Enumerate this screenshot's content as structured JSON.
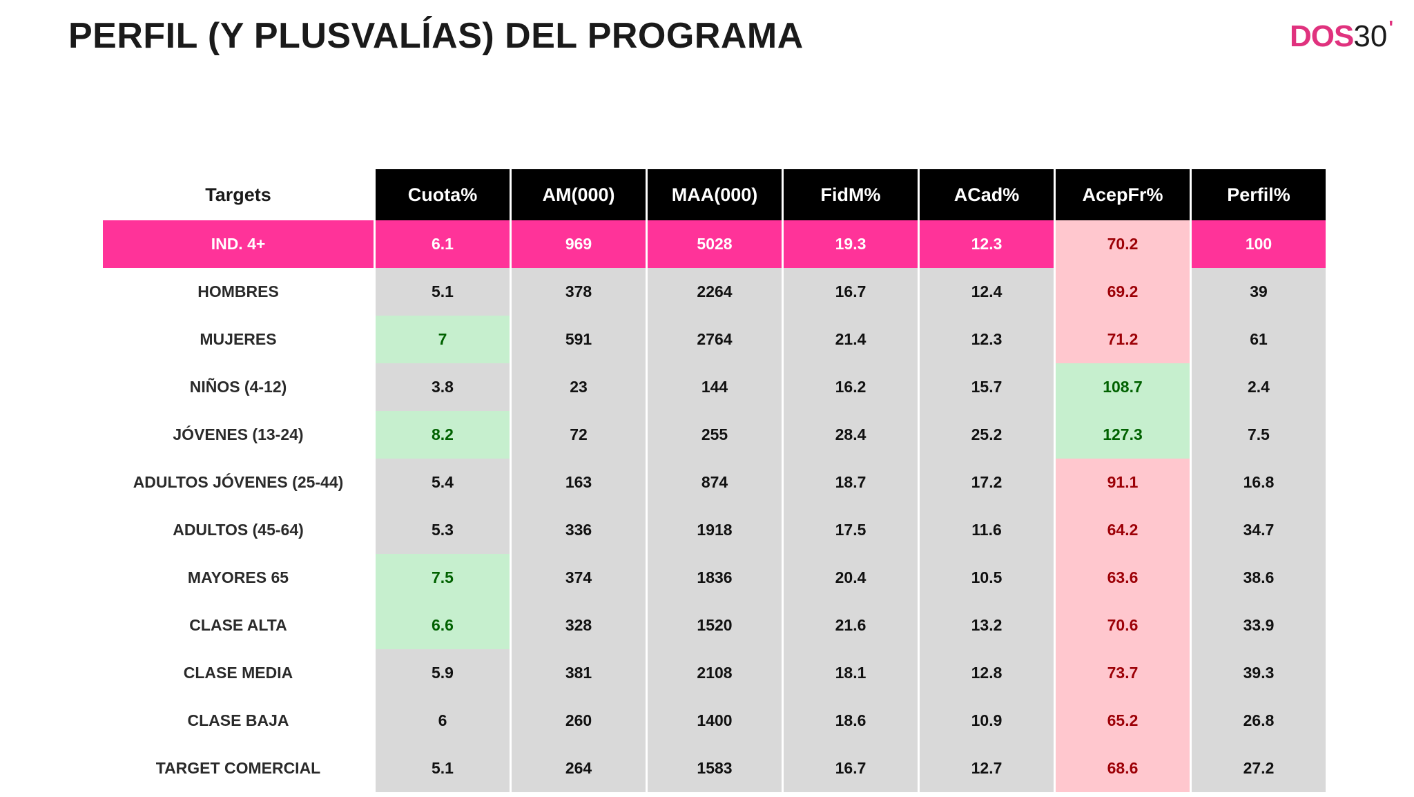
{
  "title": "PERFIL (Y PLUSVALÍAS) DEL PROGRAMA",
  "logo": {
    "brand": "DOS",
    "number": "30",
    "mark": "'"
  },
  "colors": {
    "header_bg": "#000000",
    "header_text": "#ffffff",
    "total_row_bg": "#ff3399",
    "cell_bg": "#d9d9d9",
    "highlight_green_bg": "#c6efce",
    "highlight_green_text": "#006100",
    "highlight_red_bg": "#ffc7ce",
    "highlight_red_text": "#9c0006",
    "logo_accent": "#e0327e"
  },
  "table": {
    "headers": [
      "Targets",
      "Cuota%",
      "AM(000)",
      "MAA(000)",
      "FidM%",
      "ACad%",
      "AcepFr%",
      "Perfil%"
    ],
    "rows": [
      {
        "target": "IND. 4+",
        "values": [
          "6.1",
          "969",
          "5028",
          "19.3",
          "12.3",
          "70.2",
          "100"
        ],
        "total": true,
        "green": [],
        "red": [
          5
        ]
      },
      {
        "target": "HOMBRES",
        "values": [
          "5.1",
          "378",
          "2264",
          "16.7",
          "12.4",
          "69.2",
          "39"
        ],
        "green": [],
        "red": [
          5
        ]
      },
      {
        "target": "MUJERES",
        "values": [
          "7",
          "591",
          "2764",
          "21.4",
          "12.3",
          "71.2",
          "61"
        ],
        "green": [
          0
        ],
        "red": [
          5
        ]
      },
      {
        "target": "NIÑOS (4-12)",
        "values": [
          "3.8",
          "23",
          "144",
          "16.2",
          "15.7",
          "108.7",
          "2.4"
        ],
        "green": [
          5
        ],
        "red": []
      },
      {
        "target": "JÓVENES (13-24)",
        "values": [
          "8.2",
          "72",
          "255",
          "28.4",
          "25.2",
          "127.3",
          "7.5"
        ],
        "green": [
          0,
          5
        ],
        "red": []
      },
      {
        "target": "ADULTOS JÓVENES (25-44)",
        "values": [
          "5.4",
          "163",
          "874",
          "18.7",
          "17.2",
          "91.1",
          "16.8"
        ],
        "green": [],
        "red": [
          5
        ]
      },
      {
        "target": "ADULTOS (45-64)",
        "values": [
          "5.3",
          "336",
          "1918",
          "17.5",
          "11.6",
          "64.2",
          "34.7"
        ],
        "green": [],
        "red": [
          5
        ]
      },
      {
        "target": "MAYORES 65",
        "values": [
          "7.5",
          "374",
          "1836",
          "20.4",
          "10.5",
          "63.6",
          "38.6"
        ],
        "green": [
          0
        ],
        "red": [
          5
        ]
      },
      {
        "target": "CLASE ALTA",
        "values": [
          "6.6",
          "328",
          "1520",
          "21.6",
          "13.2",
          "70.6",
          "33.9"
        ],
        "green": [
          0
        ],
        "red": [
          5
        ]
      },
      {
        "target": "CLASE MEDIA",
        "values": [
          "5.9",
          "381",
          "2108",
          "18.1",
          "12.8",
          "73.7",
          "39.3"
        ],
        "green": [],
        "red": [
          5
        ]
      },
      {
        "target": "CLASE BAJA",
        "values": [
          "6",
          "260",
          "1400",
          "18.6",
          "10.9",
          "65.2",
          "26.8"
        ],
        "green": [],
        "red": [
          5
        ]
      },
      {
        "target": "TARGET COMERCIAL",
        "values": [
          "5.1",
          "264",
          "1583",
          "16.7",
          "12.7",
          "68.6",
          "27.2"
        ],
        "green": [],
        "red": [
          5
        ]
      }
    ]
  }
}
